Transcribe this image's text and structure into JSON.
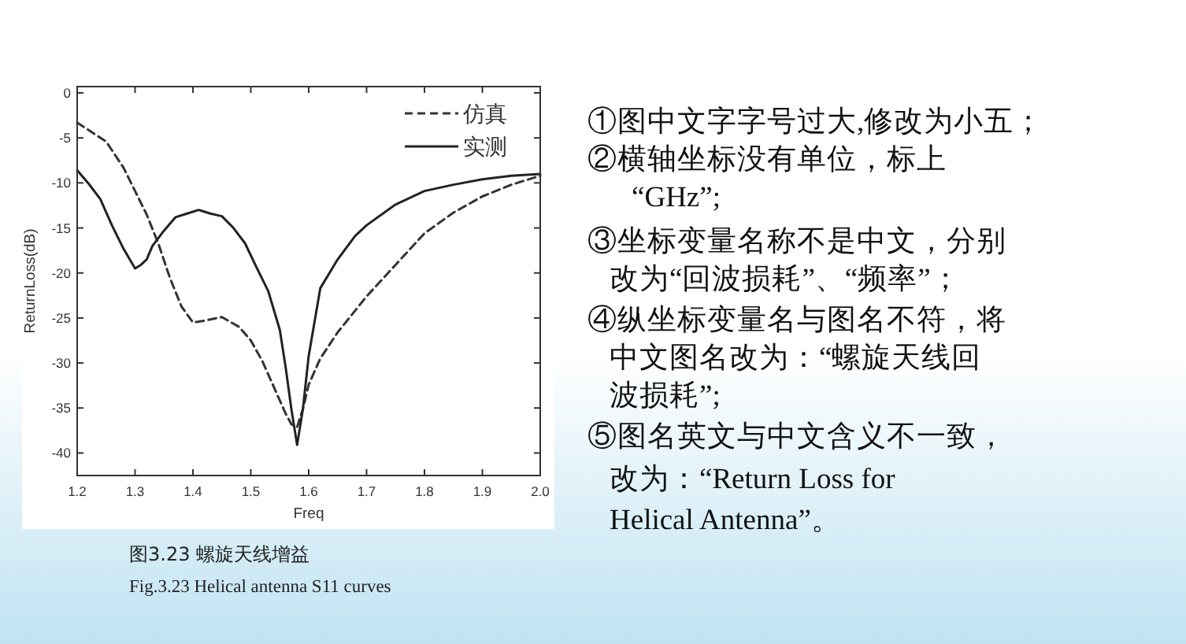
{
  "chart_data": {
    "type": "line",
    "xlabel": "Freq",
    "ylabel": "ReturnLoss(dB)",
    "xlim": [
      1.2,
      2.0
    ],
    "ylim": [
      -42.5,
      0.7
    ],
    "xticks": [
      1.2,
      1.3,
      1.4,
      1.5,
      1.6,
      1.7,
      1.8,
      1.9,
      {
        "value": 2.0,
        "label": "2.0"
      }
    ],
    "yticks": [
      0,
      -5,
      -10,
      -15,
      -20,
      -25,
      -30,
      -35,
      -40
    ],
    "legend": "top right",
    "grid": false,
    "series": [
      {
        "name": "仿真",
        "color": "#333333",
        "line_style": "dashed",
        "x": [
          1.2,
          1.25,
          1.28,
          1.3,
          1.32,
          1.34,
          1.36,
          1.38,
          1.4,
          1.42,
          1.45,
          1.48,
          1.5,
          1.52,
          1.54,
          1.56,
          1.57,
          1.58,
          1.59,
          1.6,
          1.62,
          1.65,
          1.7,
          1.75,
          1.8,
          1.85,
          1.9,
          1.95,
          2.0
        ],
        "values": [
          -3.3,
          -5.4,
          -8.3,
          -10.9,
          -13.5,
          -16.7,
          -20.5,
          -23.7,
          -25.5,
          -25.3,
          -24.9,
          -26.0,
          -27.5,
          -29.8,
          -32.7,
          -35.6,
          -36.8,
          -37.1,
          -35.1,
          -32.4,
          -29.5,
          -26.6,
          -22.6,
          -19.1,
          -15.6,
          -13.3,
          -11.5,
          -10.2,
          -9.2
        ]
      },
      {
        "name": "实测",
        "color": "#222222",
        "line_style": "solid",
        "x": [
          1.2,
          1.22,
          1.24,
          1.26,
          1.28,
          1.3,
          1.31,
          1.32,
          1.33,
          1.35,
          1.37,
          1.39,
          1.41,
          1.43,
          1.45,
          1.47,
          1.49,
          1.51,
          1.53,
          1.55,
          1.56,
          1.57,
          1.58,
          1.59,
          1.6,
          1.62,
          1.65,
          1.68,
          1.7,
          1.75,
          1.8,
          1.85,
          1.9,
          1.95,
          2.0
        ],
        "values": [
          -8.6,
          -10.1,
          -11.8,
          -14.7,
          -17.3,
          -19.5,
          -19.1,
          -18.5,
          -17.0,
          -15.3,
          -13.8,
          -13.4,
          -13.0,
          -13.4,
          -13.7,
          -15.0,
          -16.7,
          -19.4,
          -22.0,
          -26.3,
          -30.4,
          -35.1,
          -39.1,
          -35.1,
          -29.2,
          -21.7,
          -18.5,
          -15.9,
          -14.7,
          -12.4,
          -10.9,
          -10.2,
          -9.6,
          -9.2,
          -9.0
        ]
      }
    ],
    "annotations": [
      "图3.23 螺旋天线增益",
      "Fig.3.23 Helical antenna S11 curves",
      "①图中文字字号过大,修改为小五；",
      "②横轴坐标没有单位，标上",
      "“GHz”;",
      "③坐标变量名称不是中文，分别",
      "改为“回波损耗”、“频率”；",
      "④纵坐标变量名与图名不符，将",
      "中文图名改为：“螺旋天线回",
      "波损耗”;",
      "⑤图名英文与中文含义不一致，",
      "改为：“Return Loss for",
      "Helical Antenna”。"
    ]
  }
}
